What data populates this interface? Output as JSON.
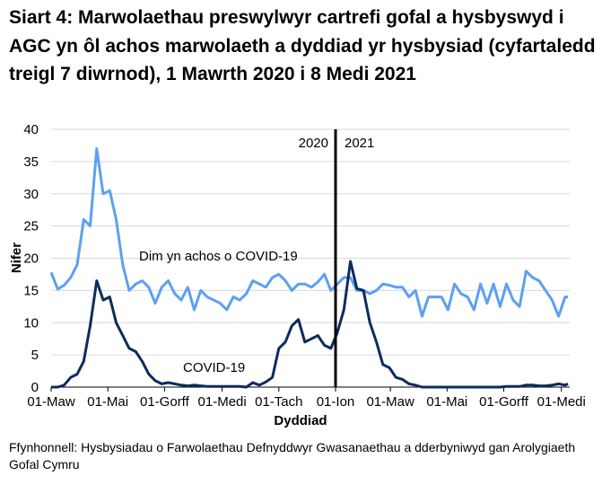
{
  "chart_data": {
    "type": "line",
    "title": "Siart 4: Marwolaethau preswylwyr cartrefi gofal a hysbyswyd i AGC yn ôl achos marwolaeth a dyddiad yr hysbysiad (cyfartaledd treigl 7 diwrnod), 1 Mawrth 2020 i 8 Medi 2021",
    "xlabel": "Dyddiad",
    "ylabel": "Nifer",
    "ylim": [
      0,
      40
    ],
    "yticks": [
      "0",
      "5",
      "10",
      "15",
      "20",
      "25",
      "30",
      "35",
      "40"
    ],
    "xlim": [
      "2020-03-01",
      "2021-09-08"
    ],
    "xticks": [
      {
        "date": "2020-03-01",
        "label": "01-Maw"
      },
      {
        "date": "2020-05-01",
        "label": "01-Mai"
      },
      {
        "date": "2020-07-01",
        "label": "01-Gorff"
      },
      {
        "date": "2020-09-01",
        "label": "01-Medi"
      },
      {
        "date": "2020-11-01",
        "label": "01-Tach"
      },
      {
        "date": "2021-01-01",
        "label": "01-Ion"
      },
      {
        "date": "2021-03-01",
        "label": "01-Maw"
      },
      {
        "date": "2021-05-01",
        "label": "01-Mai"
      },
      {
        "date": "2021-07-01",
        "label": "01-Gorff"
      },
      {
        "date": "2021-09-01",
        "label": "01-Medi"
      }
    ],
    "grid": true,
    "year_divider": {
      "date": "2021-01-01",
      "left_label": "2020",
      "right_label": "2021"
    },
    "x": [
      "2020-03-01",
      "2020-03-08",
      "2020-03-15",
      "2020-03-22",
      "2020-03-29",
      "2020-04-05",
      "2020-04-12",
      "2020-04-19",
      "2020-04-26",
      "2020-05-03",
      "2020-05-10",
      "2020-05-17",
      "2020-05-24",
      "2020-05-31",
      "2020-06-07",
      "2020-06-14",
      "2020-06-21",
      "2020-06-28",
      "2020-07-05",
      "2020-07-12",
      "2020-07-19",
      "2020-07-26",
      "2020-08-02",
      "2020-08-09",
      "2020-08-16",
      "2020-08-23",
      "2020-08-30",
      "2020-09-06",
      "2020-09-13",
      "2020-09-20",
      "2020-09-27",
      "2020-10-04",
      "2020-10-11",
      "2020-10-18",
      "2020-10-25",
      "2020-11-01",
      "2020-11-08",
      "2020-11-15",
      "2020-11-22",
      "2020-11-29",
      "2020-12-06",
      "2020-12-13",
      "2020-12-20",
      "2020-12-27",
      "2021-01-03",
      "2021-01-10",
      "2021-01-17",
      "2021-01-24",
      "2021-01-31",
      "2021-02-07",
      "2021-02-14",
      "2021-02-21",
      "2021-02-28",
      "2021-03-07",
      "2021-03-14",
      "2021-03-21",
      "2021-03-28",
      "2021-04-04",
      "2021-04-11",
      "2021-04-18",
      "2021-04-25",
      "2021-05-02",
      "2021-05-09",
      "2021-05-16",
      "2021-05-23",
      "2021-05-30",
      "2021-06-06",
      "2021-06-13",
      "2021-06-20",
      "2021-06-27",
      "2021-07-04",
      "2021-07-11",
      "2021-07-18",
      "2021-07-25",
      "2021-08-01",
      "2021-08-08",
      "2021-08-15",
      "2021-08-22",
      "2021-08-29",
      "2021-09-05",
      "2021-09-08"
    ],
    "series": [
      {
        "name": "Dim yn achos o COVID-19",
        "color": "#5ca0f2",
        "values": [
          17.8,
          15.2,
          15.8,
          17,
          19,
          26,
          25,
          37,
          30,
          30.5,
          26,
          19,
          15,
          16,
          16.5,
          15.5,
          13,
          15.5,
          16.5,
          14.5,
          13.5,
          15.5,
          12,
          15,
          14,
          13.5,
          13,
          12,
          14,
          13.5,
          14.5,
          16.5,
          16,
          15.5,
          17,
          17.5,
          16.5,
          15,
          16,
          16,
          15.5,
          16.3,
          17.5,
          15,
          16,
          17,
          17,
          15,
          15,
          14.5,
          15,
          16,
          15.8,
          15.5,
          15.5,
          14,
          15,
          11,
          14,
          14,
          14,
          12,
          16,
          14.5,
          14,
          12,
          16,
          13,
          16,
          12.5,
          16,
          13.5,
          12.5,
          18,
          17,
          16.5,
          15,
          13.5,
          11,
          14,
          14
        ]
      },
      {
        "name": "COVID-19",
        "color": "#0b2c5e",
        "values": [
          0,
          0,
          0.3,
          1.5,
          2,
          4,
          9.5,
          16.5,
          13.5,
          14,
          10,
          8,
          6,
          5.5,
          4,
          2,
          1,
          0.5,
          0.7,
          0.5,
          0.3,
          0.2,
          0.3,
          0.2,
          0.1,
          0.1,
          0.1,
          0.1,
          0.1,
          0.1,
          0,
          0.7,
          0.3,
          0.8,
          1.5,
          6,
          7,
          9.5,
          10.5,
          7,
          7.5,
          8,
          6.5,
          6,
          8.5,
          12,
          19.5,
          15.3,
          15,
          10,
          7,
          3.5,
          3,
          1.5,
          1.2,
          0.5,
          0.3,
          0,
          0,
          0,
          0,
          0,
          0,
          0,
          0,
          0,
          0,
          0,
          0,
          0,
          0.1,
          0.1,
          0.1,
          0.3,
          0.3,
          0.2,
          0.2,
          0.3,
          0.5,
          0.3,
          0.5
        ]
      }
    ],
    "source": "Ffynhonnell: Hysbysiadau o Farwolaethau Defnyddwyr Gwasanaethau a dderbyniwyd gan Arolygiaeth Gofal Cymru"
  }
}
